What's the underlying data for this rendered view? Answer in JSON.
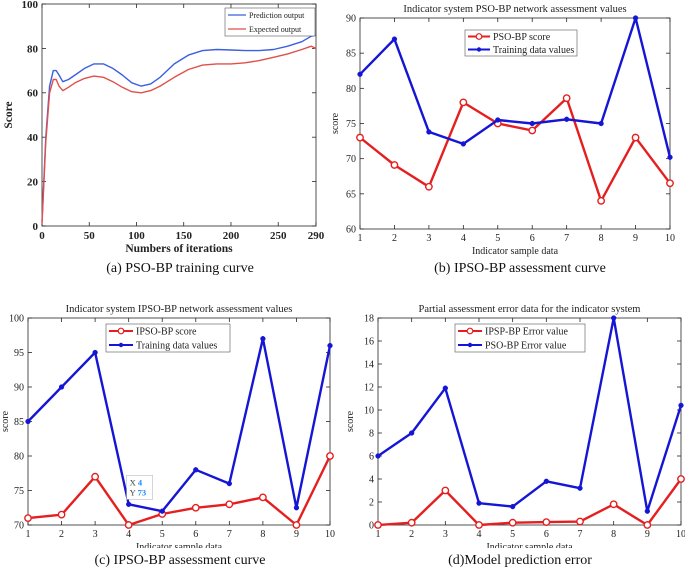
{
  "chart_data": [
    {
      "id": "a",
      "type": "line",
      "title": "",
      "xlabel": "Numbers of iterations",
      "ylabel": "Score",
      "xlim": [
        0,
        290
      ],
      "ylim": [
        0,
        100
      ],
      "xticks": [
        0,
        50,
        100,
        150,
        200,
        250,
        290
      ],
      "yticks": [
        0,
        20,
        40,
        60,
        80,
        100
      ],
      "legend": "top-right",
      "caption": "(a) PSO-BP training curve",
      "series": [
        {
          "name": "Prediction output",
          "color": "#3a5fe0",
          "x": [
            0,
            4,
            8,
            12,
            15,
            18,
            22,
            28,
            35,
            45,
            55,
            65,
            75,
            85,
            95,
            105,
            115,
            125,
            140,
            155,
            170,
            185,
            200,
            215,
            230,
            245,
            260,
            275,
            285,
            290
          ],
          "y": [
            2,
            40,
            63,
            70,
            70,
            68,
            65,
            66,
            68,
            71,
            73,
            73,
            71,
            68,
            64.5,
            63,
            64,
            67,
            73,
            77,
            79,
            79.5,
            79.3,
            79,
            79,
            79.5,
            81,
            83,
            85.5,
            86
          ]
        },
        {
          "name": "Expected output",
          "color": "#e0504a",
          "x": [
            0,
            4,
            8,
            12,
            15,
            18,
            22,
            28,
            35,
            45,
            55,
            65,
            75,
            85,
            95,
            105,
            115,
            125,
            140,
            155,
            170,
            185,
            200,
            215,
            230,
            245,
            260,
            275,
            285,
            290
          ],
          "y": [
            1,
            38,
            60,
            66,
            66,
            63,
            61,
            62.5,
            64.5,
            66.5,
            67.5,
            67,
            65,
            62.5,
            60.5,
            60,
            61,
            63,
            67,
            70.5,
            72.5,
            73,
            73,
            73.5,
            74.5,
            76,
            77.5,
            79.5,
            81,
            80
          ]
        }
      ]
    },
    {
      "id": "b",
      "type": "line",
      "title": "Indicator system PSO-BP network assessment values",
      "xlabel": "Indicator sample data",
      "ylabel": "score",
      "xlim": [
        1,
        10
      ],
      "ylim": [
        60,
        90
      ],
      "xticks": [
        1,
        2,
        3,
        4,
        5,
        6,
        7,
        8,
        9,
        10
      ],
      "yticks": [
        60,
        65,
        70,
        75,
        80,
        85,
        90
      ],
      "legend": "top-center",
      "caption": "(b) IPSO-BP assessment curve",
      "series": [
        {
          "name": "PSO-BP score",
          "color": "#e51f1f",
          "marker": "circle",
          "x": [
            1,
            2,
            3,
            4,
            5,
            6,
            7,
            8,
            9,
            10
          ],
          "y": [
            73,
            69.1,
            66,
            78,
            75,
            74,
            78.6,
            64,
            73,
            66.5
          ]
        },
        {
          "name": "Training data values",
          "color": "#1515d6",
          "marker": "dot",
          "x": [
            1,
            2,
            3,
            4,
            5,
            6,
            7,
            8,
            9,
            10
          ],
          "y": [
            82,
            87,
            73.8,
            72.1,
            75.5,
            75,
            75.6,
            75,
            90,
            70.2
          ]
        }
      ]
    },
    {
      "id": "c",
      "type": "line",
      "title": "Indicator system IPSO-BP network assessment values",
      "xlabel": "Indicator sample data",
      "ylabel": "score",
      "xlim": [
        1,
        10
      ],
      "ylim": [
        70,
        100
      ],
      "xticks": [
        1,
        2,
        3,
        4,
        5,
        6,
        7,
        8,
        9,
        10
      ],
      "yticks": [
        70,
        75,
        80,
        85,
        90,
        95,
        100
      ],
      "legend": "top-left",
      "caption": "(c) IPSO-BP assessment curve",
      "datatip": {
        "x_label": "X",
        "x_value": "4",
        "y_label": "Y",
        "y_value": "73",
        "at_x": 4,
        "at_y": 73
      },
      "series": [
        {
          "name": "IPSO-BP score",
          "color": "#e51f1f",
          "marker": "circle",
          "x": [
            1,
            2,
            3,
            4,
            5,
            6,
            7,
            8,
            9,
            10
          ],
          "y": [
            71,
            71.5,
            77,
            70,
            71.6,
            72.5,
            73,
            74,
            70,
            80
          ]
        },
        {
          "name": "Training data values",
          "color": "#1515d6",
          "marker": "dot",
          "x": [
            1,
            2,
            3,
            4,
            5,
            6,
            7,
            8,
            9,
            10
          ],
          "y": [
            85,
            90,
            95,
            73,
            72,
            78,
            76,
            97,
            72.5,
            96
          ]
        }
      ]
    },
    {
      "id": "d",
      "type": "line",
      "title": "Partial assessment error data for the indicator system",
      "xlabel": "Indicator sample data",
      "ylabel": "score",
      "xlim": [
        1,
        10
      ],
      "ylim": [
        0,
        18
      ],
      "xticks": [
        1,
        2,
        3,
        4,
        5,
        6,
        7,
        8,
        9,
        10
      ],
      "yticks": [
        0,
        2,
        4,
        6,
        8,
        10,
        12,
        14,
        16,
        18
      ],
      "legend": "top-left",
      "caption": "(d)Model prediction error",
      "series": [
        {
          "name": "IPSP-BP Error value",
          "color": "#e51f1f",
          "marker": "circle",
          "x": [
            1,
            2,
            3,
            4,
            5,
            6,
            7,
            8,
            9,
            10
          ],
          "y": [
            0,
            0.2,
            3,
            0,
            0.2,
            0.25,
            0.3,
            1.8,
            0,
            4
          ]
        },
        {
          "name": "PSO-BP Error value",
          "color": "#1515d6",
          "marker": "dot",
          "x": [
            1,
            2,
            3,
            4,
            5,
            6,
            7,
            8,
            9,
            10
          ],
          "y": [
            6,
            8,
            11.9,
            1.9,
            1.6,
            3.8,
            3.2,
            18,
            1.2,
            10.4
          ]
        }
      ]
    }
  ]
}
